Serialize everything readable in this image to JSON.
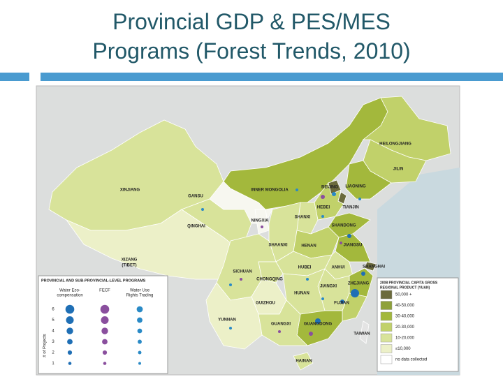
{
  "header": {
    "title": [
      "Provincial GDP & PES/MES",
      "Programs (Forest Trends, 2010)"
    ]
  },
  "map": {
    "labels": [
      "XINJIANG",
      "GANSU",
      "INNER MONGOLIA",
      "HEILONGJIANG",
      "JILIN",
      "LIAONING",
      "BEIJING",
      "HEBEI",
      "TIANJIN",
      "SHANXI",
      "NINGXIA",
      "QINGHAI",
      "SHANDONG",
      "SHAANXI",
      "HENAN",
      "JIANGSU",
      "XIZANG",
      "(TIBET)",
      "SICHUAN",
      "HUBEI",
      "ANHUI",
      "SHANGHAI",
      "CHONGQING",
      "ZHEJIANG",
      "JIANGXI",
      "HUNAN",
      "GUIZHOU",
      "FUJIAN",
      "YUNNAN",
      "GUANGXI",
      "GUANGDONG",
      "TAIWAN",
      "HAINAN"
    ]
  },
  "legend_programs": {
    "title": "PROVINCIAL AND SUB-PROVINCIAL-LEVEL PROGRAMS",
    "columns": [
      [
        "Water Eco-",
        "compensation"
      ],
      [
        "FECF"
      ],
      [
        "Water Use",
        "Rights Trading"
      ]
    ],
    "rows": [
      6,
      5,
      4,
      3,
      2,
      1
    ],
    "axis_label": "# of Projects"
  },
  "legend_gdp": {
    "title": [
      "2008 PROVINCIAL CAPITA GROSS",
      "REGIONAL PRODUCT (YUAN)"
    ],
    "items": [
      "50,000 +",
      "40-50,000",
      "30-40,000",
      "20-30,000",
      "10-20,000",
      "≤10,000",
      "no data collected"
    ]
  }
}
